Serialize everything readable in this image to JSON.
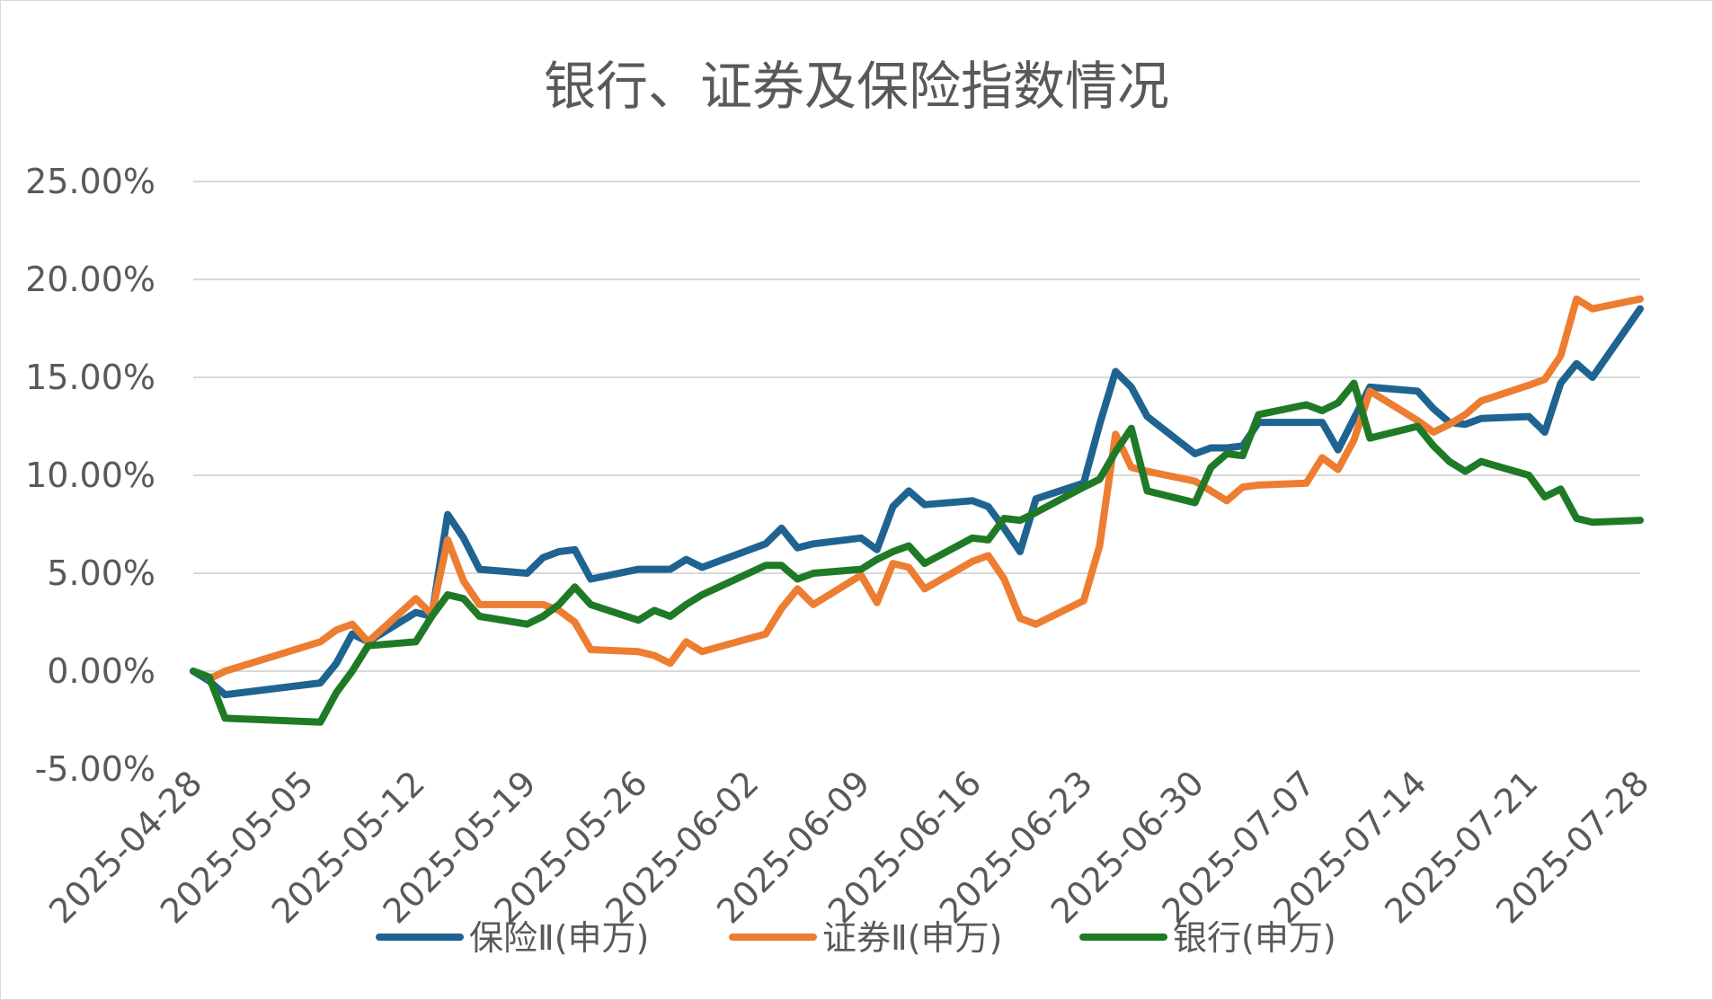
{
  "chart_data": {
    "type": "line",
    "title": "银行、证券及保险指数情况",
    "xlabel": "",
    "ylabel": "",
    "ylim": [
      -0.05,
      0.25
    ],
    "ytick_values": [
      -0.05,
      0.0,
      0.05,
      0.1,
      0.15,
      0.2,
      0.25
    ],
    "ytick_labels": [
      "-5.00%",
      "0.00%",
      "5.00%",
      "10.00%",
      "15.00%",
      "20.00%",
      "25.00%"
    ],
    "xlim": [
      "2025-04-28",
      "2025-07-28"
    ],
    "xtick_labels": [
      "2025-04-28",
      "2025-05-05",
      "2025-05-12",
      "2025-05-19",
      "2025-05-26",
      "2025-06-02",
      "2025-06-09",
      "2025-06-16",
      "2025-06-23",
      "2025-06-30",
      "2025-07-07",
      "2025-07-14",
      "2025-07-21",
      "2025-07-28"
    ],
    "grid": true,
    "legend_position": "bottom",
    "x": [
      "2025-04-28",
      "2025-04-29",
      "2025-04-30",
      "2025-05-06",
      "2025-05-07",
      "2025-05-08",
      "2025-05-09",
      "2025-05-12",
      "2025-05-13",
      "2025-05-14",
      "2025-05-15",
      "2025-05-16",
      "2025-05-19",
      "2025-05-20",
      "2025-05-21",
      "2025-05-22",
      "2025-05-23",
      "2025-05-26",
      "2025-05-27",
      "2025-05-28",
      "2025-05-29",
      "2025-05-30",
      "2025-06-03",
      "2025-06-04",
      "2025-06-05",
      "2025-06-06",
      "2025-06-09",
      "2025-06-10",
      "2025-06-11",
      "2025-06-12",
      "2025-06-13",
      "2025-06-16",
      "2025-06-17",
      "2025-06-18",
      "2025-06-19",
      "2025-06-20",
      "2025-06-23",
      "2025-06-24",
      "2025-06-25",
      "2025-06-26",
      "2025-06-27",
      "2025-06-30",
      "2025-07-01",
      "2025-07-02",
      "2025-07-03",
      "2025-07-04",
      "2025-07-07",
      "2025-07-08",
      "2025-07-09",
      "2025-07-10",
      "2025-07-11",
      "2025-07-14",
      "2025-07-15",
      "2025-07-16",
      "2025-07-17",
      "2025-07-18",
      "2025-07-21",
      "2025-07-22",
      "2025-07-23",
      "2025-07-24",
      "2025-07-25",
      "2025-07-28"
    ],
    "series": [
      {
        "name": "保险Ⅱ(申万)",
        "color": "#1f6391",
        "values": [
          0.0,
          -0.005,
          -0.012,
          -0.006,
          0.004,
          0.019,
          0.015,
          0.03,
          0.028,
          0.08,
          0.068,
          0.052,
          0.05,
          0.058,
          0.061,
          0.062,
          0.047,
          0.052,
          0.052,
          0.052,
          0.057,
          0.053,
          0.065,
          0.073,
          0.063,
          0.065,
          0.068,
          0.062,
          0.084,
          0.092,
          0.085,
          0.087,
          0.084,
          0.073,
          0.061,
          0.088,
          0.096,
          0.126,
          0.153,
          0.145,
          0.13,
          0.111,
          0.114,
          0.114,
          0.115,
          0.127,
          0.127,
          0.127,
          0.113,
          0.129,
          0.145,
          0.143,
          0.134,
          0.127,
          0.126,
          0.129,
          0.13,
          0.122,
          0.147,
          0.157,
          0.15,
          0.185
        ]
      },
      {
        "name": "证券Ⅱ(申万)",
        "color": "#ed7d31",
        "values": [
          null,
          -0.004,
          0.0,
          0.015,
          0.021,
          0.024,
          0.015,
          0.037,
          0.029,
          0.067,
          0.046,
          0.034,
          0.034,
          0.034,
          0.031,
          0.025,
          0.011,
          0.01,
          0.008,
          0.004,
          0.015,
          0.01,
          0.019,
          0.032,
          0.042,
          0.034,
          0.049,
          0.035,
          0.055,
          0.053,
          0.042,
          0.056,
          0.059,
          0.047,
          0.027,
          0.024,
          0.036,
          0.064,
          0.121,
          0.104,
          0.102,
          0.097,
          0.092,
          0.087,
          0.094,
          0.095,
          0.096,
          0.109,
          0.103,
          0.118,
          0.143,
          0.128,
          0.122,
          0.126,
          0.131,
          0.138,
          0.146,
          0.149,
          0.161,
          0.19,
          0.185,
          0.19
        ]
      },
      {
        "name": "银行(申万)",
        "color": "#1f7a26",
        "values": [
          0.0,
          -0.003,
          -0.024,
          -0.026,
          -0.011,
          0.0,
          0.013,
          0.015,
          0.028,
          0.039,
          0.037,
          0.028,
          0.024,
          0.028,
          0.034,
          0.043,
          0.034,
          0.026,
          0.031,
          0.028,
          0.034,
          0.039,
          0.054,
          0.054,
          0.047,
          0.05,
          0.052,
          0.057,
          0.061,
          0.064,
          0.055,
          0.068,
          0.067,
          0.078,
          0.077,
          0.081,
          0.094,
          0.098,
          0.112,
          0.124,
          0.092,
          0.086,
          0.104,
          0.111,
          0.11,
          0.131,
          0.136,
          0.133,
          0.137,
          0.147,
          0.119,
          0.125,
          0.115,
          0.107,
          0.102,
          0.107,
          0.1,
          0.089,
          0.093,
          0.078,
          0.076,
          0.077
        ]
      }
    ]
  }
}
